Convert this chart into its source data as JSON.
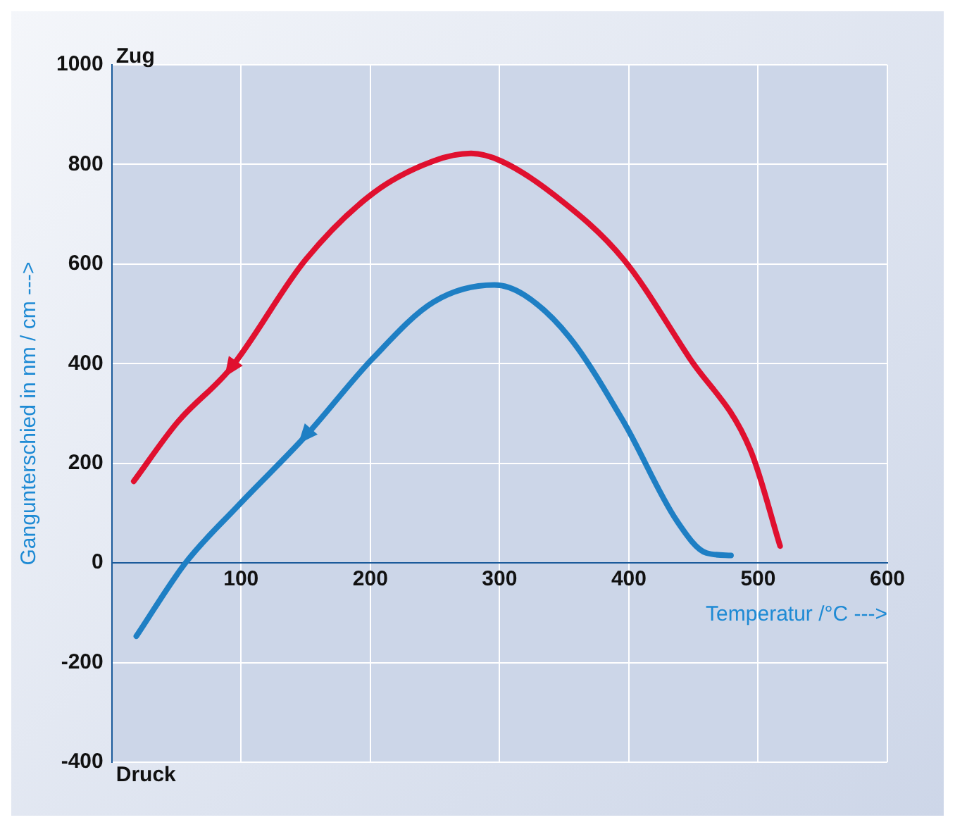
{
  "chart_data": {
    "type": "line",
    "xlabel": "Temperatur /°C --->",
    "ylabel": "Gangunterschied in nm / cm --->",
    "xlim": [
      0,
      600
    ],
    "ylim": [
      -400,
      1000
    ],
    "xticks": [
      100,
      200,
      300,
      400,
      500,
      600
    ],
    "yticks": [
      -400,
      -200,
      0,
      200,
      400,
      600,
      800,
      1000
    ],
    "grid": true,
    "legend": false,
    "marker": "none",
    "line_style": "solid",
    "annotations": [
      "Zug",
      "Druck"
    ],
    "series": [
      {
        "color": "#e0102f",
        "x": [
          17,
          51,
          92,
          150,
          202,
          249,
          278,
          301,
          343,
          396,
          447,
          494,
          517
        ],
        "values": [
          164,
          283,
          391,
          609,
          742,
          807,
          822,
          807,
          737,
          609,
          411,
          227,
          34
        ]
      },
      {
        "color": "#1e7fc4",
        "x": [
          19,
          57,
          97,
          150,
          202,
          249,
          296,
          319,
          354,
          396,
          437,
          460,
          479
        ],
        "values": [
          -147,
          0,
          113,
          255,
          411,
          524,
          558,
          538,
          453,
          283,
          85,
          20,
          15
        ]
      }
    ]
  }
}
